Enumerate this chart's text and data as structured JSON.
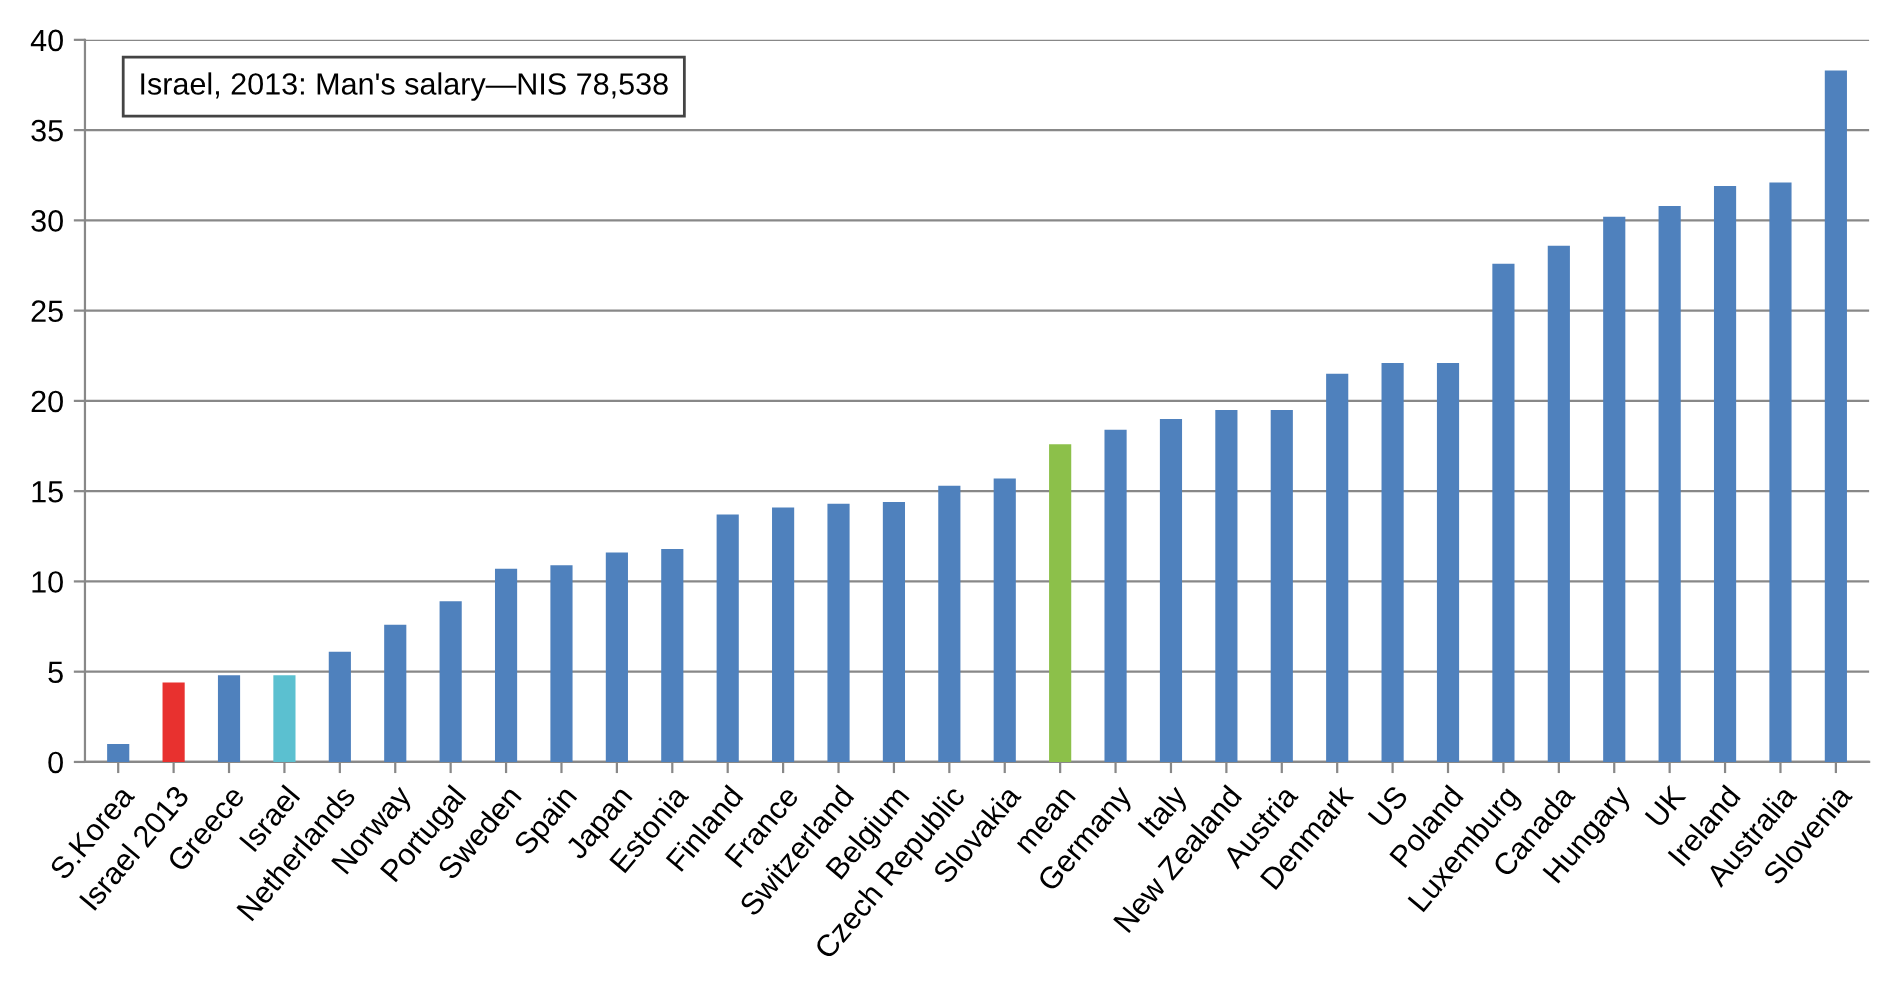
{
  "chart_data": {
    "type": "bar",
    "categories": [
      "S.Korea",
      "Israel 2013",
      "Greece",
      "Israel",
      "Netherlands",
      "Norway",
      "Portugal",
      "Sweden",
      "Spain",
      "Japan",
      "Estonia",
      "Finland",
      "France",
      "Switzerland",
      "Belgium",
      "Czech Republic",
      "Slovakia",
      "mean",
      "Germany",
      "Italy",
      "New Zealand",
      "Austria",
      "Denmark",
      "US",
      "Poland",
      "Luxemburg",
      "Canada",
      "Hungary",
      "UK",
      "Ireland",
      "Australia",
      "Slovenia"
    ],
    "values": [
      1.0,
      4.4,
      4.8,
      4.8,
      6.1,
      7.6,
      8.9,
      10.7,
      10.9,
      11.6,
      11.8,
      13.7,
      14.1,
      14.3,
      14.4,
      15.3,
      15.7,
      17.6,
      18.4,
      19.0,
      19.5,
      19.5,
      21.5,
      22.1,
      22.1,
      27.6,
      28.6,
      30.2,
      30.8,
      31.9,
      32.1,
      38.3
    ],
    "colors": [
      "#4f81bd",
      "#e8312f",
      "#4f81bd",
      "#5bc0d0",
      "#4f81bd",
      "#4f81bd",
      "#4f81bd",
      "#4f81bd",
      "#4f81bd",
      "#4f81bd",
      "#4f81bd",
      "#4f81bd",
      "#4f81bd",
      "#4f81bd",
      "#4f81bd",
      "#4f81bd",
      "#4f81bd",
      "#8cc04a",
      "#4f81bd",
      "#4f81bd",
      "#4f81bd",
      "#4f81bd",
      "#4f81bd",
      "#4f81bd",
      "#4f81bd",
      "#4f81bd",
      "#4f81bd",
      "#4f81bd",
      "#4f81bd",
      "#4f81bd",
      "#4f81bd",
      "#4f81bd"
    ],
    "ylim": [
      0,
      40
    ],
    "yticks": [
      0,
      5,
      10,
      15,
      20,
      25,
      30,
      35,
      40
    ],
    "grid": "y",
    "annotations": [
      "Israel, 2013: Man's salary—NIS 78,538"
    ]
  }
}
